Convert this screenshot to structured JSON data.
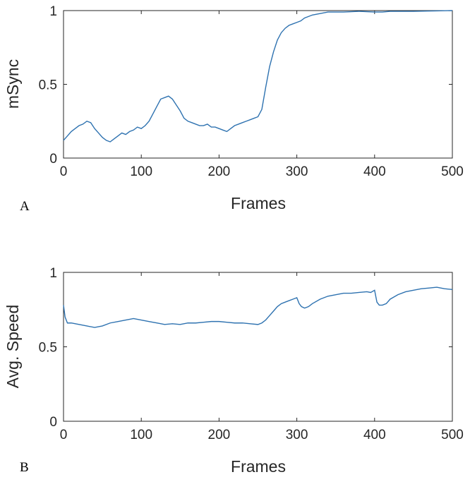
{
  "chart_data": [
    {
      "type": "line",
      "panel": "A",
      "xlabel": "Frames",
      "ylabel": "mSync",
      "xlim": [
        0,
        500
      ],
      "ylim": [
        0,
        1
      ],
      "xticks": [
        0,
        100,
        200,
        300,
        400,
        500
      ],
      "yticks": [
        0,
        0.5,
        1
      ],
      "ytick_labels": [
        "0",
        "0.5",
        "1"
      ],
      "grid": false,
      "line_color": "#2e72b0",
      "series": [
        {
          "x": [
            0,
            5,
            10,
            15,
            20,
            25,
            30,
            35,
            40,
            45,
            50,
            55,
            60,
            65,
            70,
            75,
            80,
            85,
            90,
            95,
            100,
            105,
            110,
            115,
            120,
            125,
            130,
            135,
            140,
            145,
            150,
            155,
            160,
            165,
            170,
            175,
            180,
            185,
            190,
            195,
            200,
            205,
            210,
            215,
            220,
            225,
            230,
            235,
            240,
            245,
            250,
            255,
            260,
            265,
            270,
            275,
            280,
            285,
            290,
            295,
            300,
            305,
            310,
            320,
            330,
            340,
            350,
            360,
            380,
            400,
            410,
            420,
            450,
            480,
            500
          ],
          "y": [
            0.12,
            0.15,
            0.18,
            0.2,
            0.22,
            0.23,
            0.25,
            0.24,
            0.2,
            0.17,
            0.14,
            0.12,
            0.11,
            0.13,
            0.15,
            0.17,
            0.16,
            0.18,
            0.19,
            0.21,
            0.2,
            0.22,
            0.25,
            0.3,
            0.35,
            0.4,
            0.41,
            0.42,
            0.4,
            0.36,
            0.32,
            0.27,
            0.25,
            0.24,
            0.23,
            0.22,
            0.22,
            0.23,
            0.21,
            0.21,
            0.2,
            0.19,
            0.18,
            0.2,
            0.22,
            0.23,
            0.24,
            0.25,
            0.26,
            0.27,
            0.28,
            0.33,
            0.48,
            0.62,
            0.72,
            0.8,
            0.85,
            0.88,
            0.9,
            0.91,
            0.92,
            0.93,
            0.95,
            0.97,
            0.98,
            0.99,
            0.99,
            0.99,
            0.995,
            0.99,
            0.99,
            0.995,
            0.995,
            0.998,
            1.0
          ]
        }
      ]
    },
    {
      "type": "line",
      "panel": "B",
      "xlabel": "Frames",
      "ylabel": "Avg. Speed",
      "xlim": [
        0,
        500
      ],
      "ylim": [
        0,
        1
      ],
      "xticks": [
        0,
        100,
        200,
        300,
        400,
        500
      ],
      "yticks": [
        0,
        0.5,
        1
      ],
      "ytick_labels": [
        "0",
        "0.5",
        "1"
      ],
      "grid": false,
      "line_color": "#2e72b0",
      "series": [
        {
          "x": [
            0,
            2,
            5,
            10,
            20,
            30,
            40,
            50,
            60,
            70,
            80,
            90,
            100,
            110,
            120,
            130,
            140,
            150,
            160,
            170,
            180,
            190,
            200,
            210,
            220,
            230,
            240,
            250,
            255,
            260,
            265,
            270,
            275,
            280,
            285,
            290,
            295,
            300,
            303,
            306,
            310,
            315,
            320,
            330,
            340,
            350,
            360,
            370,
            380,
            390,
            395,
            400,
            403,
            406,
            410,
            415,
            420,
            430,
            440,
            450,
            460,
            470,
            480,
            490,
            500
          ],
          "y": [
            0.78,
            0.7,
            0.66,
            0.66,
            0.65,
            0.64,
            0.63,
            0.64,
            0.66,
            0.67,
            0.68,
            0.69,
            0.68,
            0.67,
            0.66,
            0.65,
            0.655,
            0.65,
            0.66,
            0.66,
            0.665,
            0.67,
            0.67,
            0.665,
            0.66,
            0.66,
            0.655,
            0.65,
            0.66,
            0.68,
            0.71,
            0.74,
            0.77,
            0.79,
            0.8,
            0.81,
            0.82,
            0.83,
            0.79,
            0.77,
            0.76,
            0.77,
            0.79,
            0.82,
            0.84,
            0.85,
            0.86,
            0.86,
            0.865,
            0.87,
            0.865,
            0.88,
            0.8,
            0.78,
            0.78,
            0.79,
            0.82,
            0.85,
            0.87,
            0.88,
            0.89,
            0.895,
            0.9,
            0.89,
            0.885
          ]
        }
      ]
    }
  ]
}
